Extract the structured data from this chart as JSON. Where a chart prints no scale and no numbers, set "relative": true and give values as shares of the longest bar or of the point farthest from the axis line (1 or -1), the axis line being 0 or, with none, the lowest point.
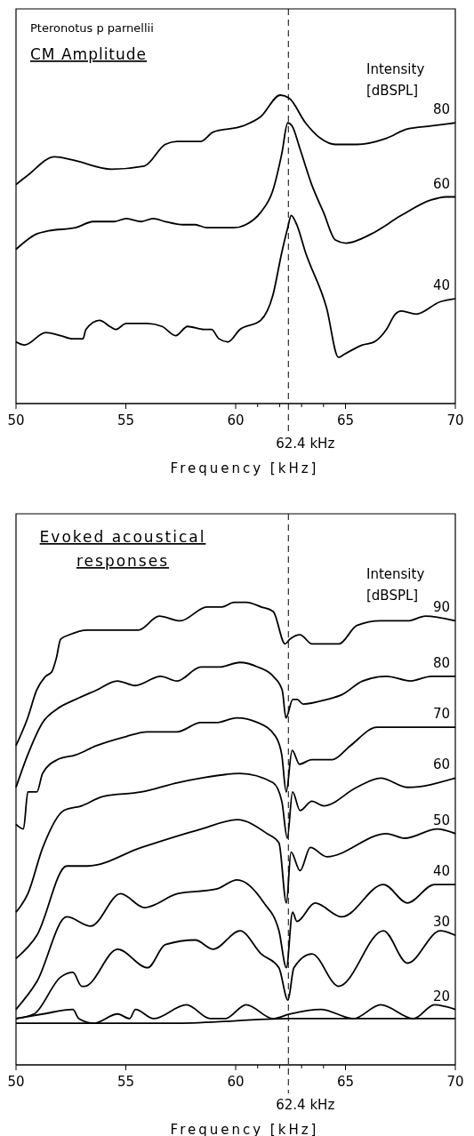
{
  "chart_data": [
    {
      "type": "line",
      "title": "CM Amplitude",
      "annotations": [
        "Pteronotus p parnellii"
      ],
      "xlabel": "Frequency [kHz]",
      "legend_title": "Intensity [dBSPL]",
      "relative": true,
      "xlim": [
        50,
        70
      ],
      "xticks": [
        50,
        55,
        60,
        {
          "value": 61,
          "label": null
        },
        {
          "value": 62,
          "label": null
        },
        {
          "value": 63,
          "label": null
        },
        {
          "value": 64,
          "label": null
        },
        65,
        70
      ],
      "ref_lines": [
        {
          "axis": "x",
          "value": 62.4,
          "label": "62.4 kHz",
          "line_style": "dashed"
        }
      ],
      "series": [
        {
          "name": "80",
          "color": "#000000",
          "x": [
            50,
            50.53,
            51.76,
            52.57,
            54.34,
            55.84,
            56.79,
            57.33,
            58.42,
            58.97,
            60.33,
            61.14,
            62.03,
            62.44,
            63.18,
            63.86,
            64.54,
            65.5,
            66.86,
            67.81,
            68.9,
            70
          ],
          "values": [
            0.71,
            0.74,
            0.8,
            0.79,
            0.76,
            0.77,
            0.84,
            0.85,
            0.85,
            0.88,
            0.9,
            0.93,
            1.0,
            0.99,
            0.91,
            0.86,
            0.84,
            0.84,
            0.86,
            0.89,
            0.9,
            0.91
          ]
        },
        {
          "name": "60",
          "color": "#000000",
          "x": [
            50,
            50.94,
            51.48,
            52.71,
            53.52,
            54.48,
            55.02,
            55.7,
            56.24,
            56.79,
            57.61,
            58.15,
            58.69,
            59.92,
            60.46,
            61.14,
            61.69,
            62.1,
            62.37,
            62.57,
            62.91,
            63.46,
            64.0,
            64.54,
            65.02,
            66.18,
            67.54,
            68.9,
            69.58,
            70
          ],
          "values": [
            0.5,
            0.55,
            0.56,
            0.57,
            0.59,
            0.59,
            0.6,
            0.59,
            0.6,
            0.59,
            0.58,
            0.58,
            0.57,
            0.57,
            0.58,
            0.62,
            0.69,
            0.81,
            0.91,
            0.9,
            0.83,
            0.71,
            0.62,
            0.53,
            0.52,
            0.55,
            0.61,
            0.66,
            0.67,
            0.67
          ]
        },
        {
          "name": "40",
          "color": "#000000",
          "x": [
            50,
            50.39,
            51.35,
            52.03,
            52.57,
            53.05,
            53.18,
            53.8,
            54.27,
            54.54,
            55.02,
            55.43,
            55.97,
            56.65,
            57.27,
            57.81,
            58.56,
            58.9,
            59.24,
            59.65,
            60.19,
            61.14,
            61.69,
            62.1,
            62.37,
            62.53,
            62.78,
            63.18,
            64.14,
            64.68,
            64.95,
            65.77,
            66.31,
            66.86,
            67.27,
            67.54,
            68.22,
            69.31,
            70
          ],
          "values": [
            0.2,
            0.19,
            0.23,
            0.22,
            0.21,
            0.21,
            0.24,
            0.27,
            0.25,
            0.24,
            0.26,
            0.26,
            0.26,
            0.25,
            0.22,
            0.25,
            0.24,
            0.24,
            0.21,
            0.2,
            0.24,
            0.27,
            0.35,
            0.49,
            0.57,
            0.61,
            0.58,
            0.49,
            0.31,
            0.15,
            0.16,
            0.19,
            0.2,
            0.24,
            0.29,
            0.3,
            0.29,
            0.33,
            0.34
          ]
        }
      ]
    },
    {
      "type": "line",
      "title": "Evoked acoustical responses",
      "xlabel": "Frequency [kHz]",
      "legend_title": "Intensity [dBSPL]",
      "relative": true,
      "xlim": [
        50,
        70
      ],
      "xticks": [
        50,
        55,
        60,
        {
          "value": 61,
          "label": null
        },
        {
          "value": 62,
          "label": null
        },
        {
          "value": 63,
          "label": null
        },
        {
          "value": 64,
          "label": null
        },
        65,
        70
      ],
      "ref_lines": [
        {
          "axis": "x",
          "value": 62.4,
          "label": "62.4 kHz",
          "line_style": "dashed"
        }
      ],
      "series": [
        {
          "name": "90",
          "color": "#000000",
          "x": [
            50,
            50.53,
            50.94,
            51.35,
            51.63,
            51.84,
            52.03,
            52.44,
            53.25,
            53.8,
            54.34,
            55.57,
            56.52,
            57.48,
            58.69,
            59.37,
            59.93,
            60.48,
            61.16,
            61.71,
            62.25,
            62.46,
            62.93,
            63.48,
            63.88,
            64.7,
            65.52,
            66.6,
            67.83,
            68.64,
            70
          ],
          "values": [
            0.69,
            0.75,
            0.81,
            0.84,
            0.85,
            0.88,
            0.92,
            0.93,
            0.94,
            0.94,
            0.94,
            0.94,
            0.97,
            0.96,
            0.99,
            0.99,
            1.0,
            1.0,
            0.99,
            0.98,
            0.91,
            0.92,
            0.93,
            0.91,
            0.91,
            0.91,
            0.95,
            0.96,
            0.96,
            0.97,
            0.96
          ]
        },
        {
          "name": "80",
          "color": "#000000",
          "x": [
            50,
            50.53,
            51.21,
            51.89,
            52.71,
            53.66,
            54.61,
            55.43,
            56.58,
            57.33,
            58.42,
            59.24,
            60.19,
            61.02,
            61.71,
            62.12,
            62.29,
            62.6,
            62.8,
            63.07,
            64.15,
            64.83,
            65.78,
            66.87,
            67.96,
            68.91,
            70
          ],
          "values": [
            0.6,
            0.67,
            0.74,
            0.77,
            0.79,
            0.81,
            0.83,
            0.82,
            0.84,
            0.83,
            0.86,
            0.86,
            0.87,
            0.86,
            0.84,
            0.81,
            0.75,
            0.79,
            0.79,
            0.78,
            0.79,
            0.8,
            0.83,
            0.84,
            0.83,
            0.84,
            0.84
          ]
        },
        {
          "name": "70",
          "color": "#000000",
          "x": [
            50,
            50.34,
            50.54,
            50.95,
            51.21,
            51.89,
            52.71,
            53.66,
            55.02,
            55.97,
            57.33,
            58.42,
            59.1,
            60.05,
            61.0,
            61.82,
            62.1,
            62.3,
            62.57,
            62.91,
            63.46,
            64.41,
            65.22,
            66.44,
            67.67,
            68.76,
            70
          ],
          "values": [
            0.52,
            0.51,
            0.59,
            0.59,
            0.63,
            0.66,
            0.67,
            0.69,
            0.71,
            0.72,
            0.72,
            0.74,
            0.74,
            0.75,
            0.74,
            0.71,
            0.67,
            0.59,
            0.68,
            0.65,
            0.66,
            0.66,
            0.69,
            0.73,
            0.73,
            0.73,
            0.73
          ]
        },
        {
          "name": "60",
          "color": "#000000",
          "x": [
            50,
            50.54,
            51.22,
            52.18,
            52.99,
            53.95,
            55.71,
            57.35,
            58.42,
            60.2,
            61.7,
            62.1,
            62.35,
            62.59,
            62.93,
            63.47,
            64.01,
            65.51,
            66.6,
            67.82,
            70
          ],
          "values": [
            0.33,
            0.37,
            0.47,
            0.55,
            0.56,
            0.58,
            0.59,
            0.61,
            0.62,
            0.63,
            0.61,
            0.57,
            0.49,
            0.59,
            0.55,
            0.57,
            0.56,
            0.6,
            0.62,
            0.6,
            0.62
          ]
        },
        {
          "name": "50",
          "color": "#000000",
          "x": [
            50,
            50.95,
            52.31,
            53.27,
            55.71,
            58.44,
            60.07,
            61.43,
            61.97,
            62.31,
            62.52,
            62.93,
            63.4,
            64.15,
            66.87,
            67.69,
            69.18,
            70
          ],
          "values": [
            0.23,
            0.28,
            0.43,
            0.43,
            0.47,
            0.51,
            0.53,
            0.5,
            0.48,
            0.35,
            0.46,
            0.42,
            0.47,
            0.45,
            0.5,
            0.49,
            0.51,
            0.5
          ]
        },
        {
          "name": "40",
          "color": "#000000",
          "x": [
            50,
            50.95,
            52.31,
            53.4,
            54.76,
            55.85,
            57.35,
            59.12,
            60.07,
            61.29,
            61.97,
            62.31,
            62.59,
            62.79,
            63.61,
            64.83,
            66.73,
            67.82,
            69.05,
            70
          ],
          "values": [
            0.12,
            0.18,
            0.32,
            0.3,
            0.37,
            0.34,
            0.37,
            0.38,
            0.4,
            0.35,
            0.29,
            0.21,
            0.33,
            0.31,
            0.35,
            0.32,
            0.39,
            0.35,
            0.39,
            0.39
          ]
        },
        {
          "name": "30",
          "color": "#000000",
          "x": [
            50,
            50.82,
            52.04,
            52.59,
            52.99,
            53.13,
            54.63,
            55.99,
            56.8,
            58.16,
            58.98,
            60.2,
            61.16,
            61.97,
            62.38,
            62.65,
            63.47,
            64.69,
            66.73,
            67.82,
            69.32,
            70
          ],
          "values": [
            0.1,
            0.11,
            0.19,
            0.2,
            0.17,
            0.17,
            0.25,
            0.21,
            0.26,
            0.27,
            0.25,
            0.29,
            0.24,
            0.21,
            0.14,
            0.21,
            0.24,
            0.17,
            0.29,
            0.22,
            0.29,
            0.28
          ]
        },
        {
          "name": "20",
          "color": "#000000",
          "x": [
            50,
            51.22,
            52.59,
            52.86,
            53.54,
            54.63,
            55.17,
            55.44,
            56.26,
            57.76,
            58.84,
            59.52,
            60.48,
            61.7,
            62.45,
            63.88,
            65.37,
            66.6,
            68.1,
            69.05,
            70
          ],
          "values": [
            0.1,
            0.11,
            0.12,
            0.1,
            0.09,
            0.11,
            0.1,
            0.12,
            0.1,
            0.13,
            0.1,
            0.1,
            0.13,
            0.1,
            0.11,
            0.12,
            0.1,
            0.13,
            0.1,
            0.13,
            0.12
          ]
        },
        {
          "color": "#000000",
          "x": [
            50,
            53.27,
            57.35,
            62.45,
            70
          ],
          "values": [
            0.09,
            0.09,
            0.09,
            0.1,
            0.1
          ]
        }
      ]
    }
  ]
}
